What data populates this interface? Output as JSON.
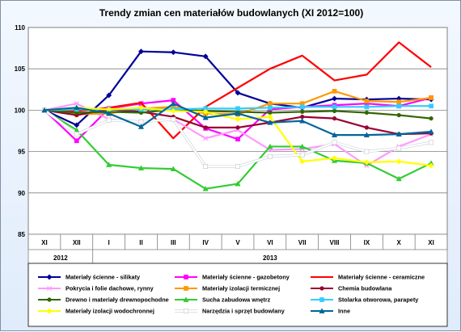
{
  "chart_data": {
    "type": "line",
    "title": "Trendy zmian cen materiałów budowlanych (XI 2012=100)",
    "categories": [
      "XI",
      "XII",
      "I",
      "II",
      "III",
      "IV",
      "V",
      "VI",
      "VII",
      "VIII",
      "IX",
      "X",
      "XI"
    ],
    "year_labels": [
      "2012",
      "2013"
    ],
    "ylim": [
      85,
      110
    ],
    "yticks": [
      85,
      90,
      95,
      100,
      105,
      110
    ],
    "grid": true,
    "legend_position": "bottom",
    "series": [
      {
        "name": "Materiały ścienne - silikaty",
        "color": "#000099",
        "values": [
          100,
          98.2,
          101.8,
          107.1,
          107.0,
          106.5,
          102.1,
          100.8,
          100.3,
          101.4,
          101.3,
          101.4,
          101.3
        ]
      },
      {
        "name": "Materiały ścienne - gazobetony",
        "color": "#ff00ff",
        "values": [
          100,
          96.3,
          100.2,
          100.8,
          101.2,
          97.8,
          96.5,
          100.1,
          100.4,
          100.6,
          100.8,
          100.5,
          101.5
        ]
      },
      {
        "name": "Materiały ścienne - ceramiczne",
        "color": "#ff0000",
        "values": [
          100,
          99.9,
          100.3,
          100.9,
          96.6,
          100.4,
          102.7,
          105.0,
          106.6,
          103.6,
          104.3,
          108.2,
          105.2
        ]
      },
      {
        "name": "Pokrycia i folie dachowe, rynny",
        "color": "#ff99ff",
        "values": [
          100,
          100.8,
          98.9,
          98.6,
          98.9,
          96.6,
          97.6,
          95.2,
          95.3,
          95.9,
          93.3,
          95.6,
          97.1
        ]
      },
      {
        "name": "Materiały izolacji termicznej",
        "color": "#ff9900",
        "values": [
          100,
          99.5,
          99.6,
          100.2,
          100.4,
          99.6,
          99.5,
          100.8,
          100.8,
          102.3,
          101.1,
          101.0,
          101.5
        ]
      },
      {
        "name": "Chemia budowlana",
        "color": "#990033",
        "values": [
          100,
          99.4,
          100.1,
          99.8,
          99.2,
          97.9,
          97.9,
          98.5,
          99.2,
          99.0,
          97.9,
          97.1,
          97.2
        ]
      },
      {
        "name": "Drewno i materiały drewnopochodne",
        "color": "#336600",
        "values": [
          100,
          99.7,
          99.8,
          99.7,
          100.1,
          99.9,
          99.8,
          99.7,
          99.8,
          99.9,
          99.7,
          99.4,
          99.0
        ]
      },
      {
        "name": "Sucha zabudowa wnętrz",
        "color": "#33cc33",
        "values": [
          100,
          97.6,
          93.4,
          93.0,
          92.9,
          90.5,
          91.1,
          95.6,
          95.6,
          93.9,
          93.6,
          91.7,
          93.6
        ]
      },
      {
        "name": "Stolarka otworowa, parapety",
        "color": "#33ccff",
        "values": [
          100,
          100.1,
          100.1,
          100.1,
          100.1,
          100.2,
          100.2,
          100.3,
          100.4,
          100.4,
          100.4,
          100.5,
          100.5
        ]
      },
      {
        "name": "Materiały izolacji wodochronnej",
        "color": "#ffff00",
        "values": [
          100,
          100.3,
          100.1,
          100.3,
          99.9,
          99.8,
          98.9,
          99.2,
          93.8,
          94.2,
          93.7,
          93.8,
          93.3
        ]
      },
      {
        "name": "Narzędzia i sprzęt budowlany",
        "color": "#ffffff",
        "values": [
          100,
          97.1,
          98.8,
          98.6,
          98.9,
          93.2,
          93.2,
          94.4,
          94.6,
          96.1,
          95.0,
          95.4,
          96.1
        ]
      },
      {
        "name": "Inne",
        "color": "#006699",
        "values": [
          100,
          100.3,
          99.6,
          98.0,
          100.8,
          99.1,
          99.6,
          98.5,
          98.7,
          97.0,
          97.0,
          97.1,
          97.4
        ]
      }
    ]
  }
}
